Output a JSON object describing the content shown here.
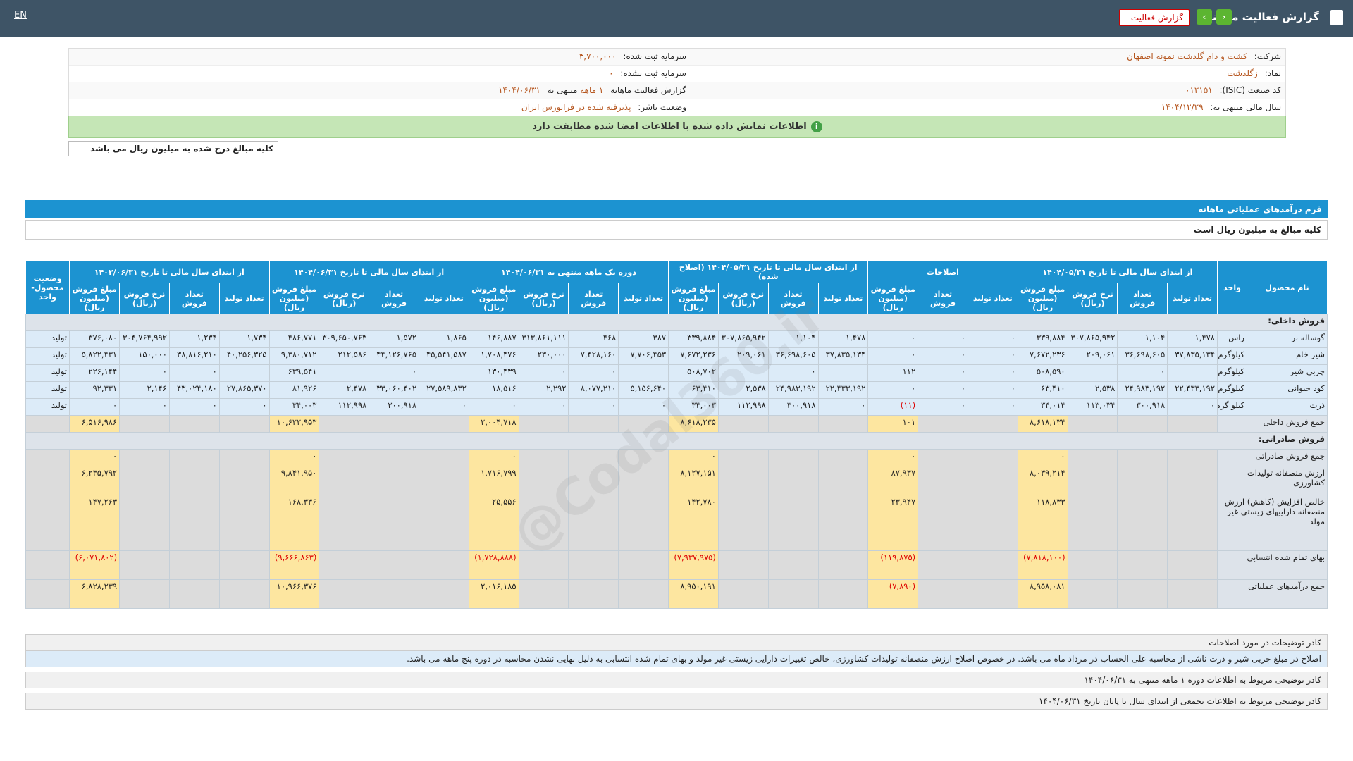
{
  "header": {
    "title": "گزارش فعالیت ماهانه",
    "report_select": "گزارش فعالیت",
    "language": "EN"
  },
  "info": {
    "rows": [
      {
        "right": {
          "label": "شرکت:",
          "value": "کشت و دام گلدشت نمونه اصفهان"
        },
        "left": {
          "label": "سرمایه ثبت شده:",
          "value": "۳,۷۰۰,۰۰۰"
        }
      },
      {
        "right": {
          "label": "نماد:",
          "value": "زگلدشت"
        },
        "left": {
          "label": "سرمایه ثبت نشده:",
          "value": "۰"
        }
      },
      {
        "right": {
          "label": "کد صنعت (ISIC):",
          "value": "۰۱۲۱۵۱"
        },
        "left": {
          "label": "گزارش فعالیت ماهانه",
          "value": "۱ ماهه",
          "suffix": "منتهی به",
          "date": "۱۴۰۴/۰۶/۳۱"
        }
      },
      {
        "right": {
          "label": "سال مالی منتهی به:",
          "value": "۱۴۰۴/۱۲/۲۹"
        },
        "left": {
          "label": "وضعیت ناشر:",
          "value": "پذیرفته شده در فرابورس ایران"
        }
      }
    ]
  },
  "notice": "اطلاعات نمایش داده شده با اطلاعات امضا شده مطابقت دارد",
  "unit_note": "کلیه مبالغ درج شده به میلیون ریال می باشد",
  "section": {
    "title": "فرم درآمدهای عملیاتی ماهانه",
    "subtitle": "کلیه مبالغ به میلیون ریال است"
  },
  "watermark": "@Codal360.ir",
  "table": {
    "head": {
      "name": "نام محصول",
      "unit": "واحد",
      "status": "وضعیت محصول-واحد",
      "groups": [
        {
          "title": "از ابتدای سال مالی تا تاریخ ۱۴۰۴/۰۵/۳۱",
          "columns": [
            "تعداد تولید",
            "تعداد فروش",
            "نرخ فروش (ریال)",
            "مبلغ فروش (میلیون ریال)"
          ]
        },
        {
          "title": "اصلاحات",
          "columns": [
            "تعداد تولید",
            "تعداد فروش",
            "مبلغ فروش (میلیون ریال)"
          ]
        },
        {
          "title": "از ابتدای سال مالی تا تاریخ ۱۴۰۴/۰۵/۳۱ (اصلاح شده)",
          "columns": [
            "تعداد تولید",
            "تعداد فروش",
            "نرخ فروش (ریال)",
            "مبلغ فروش (میلیون ریال)"
          ]
        },
        {
          "title": "دوره یک ماهه منتهی به ۱۴۰۴/۰۶/۳۱",
          "columns": [
            "تعداد تولید",
            "تعداد فروش",
            "نرخ فروش (ریال)",
            "مبلغ فروش (میلیون ریال)"
          ]
        },
        {
          "title": "از ابتدای سال مالی تا تاریخ ۱۴۰۴/۰۶/۳۱",
          "columns": [
            "تعداد تولید",
            "تعداد فروش",
            "نرخ فروش (ریال)",
            "مبلغ فروش (میلیون ریال)"
          ]
        },
        {
          "title": "از ابتدای سال مالی تا تاریخ ۱۴۰۳/۰۶/۳۱",
          "columns": [
            "تعداد تولید",
            "تعداد فروش",
            "نرخ فروش (ریال)",
            "مبلغ فروش (میلیون ریال)"
          ]
        }
      ]
    },
    "domestic_title": "فروش داخلی:",
    "products": [
      {
        "name": "گوساله نر",
        "unit": "راس",
        "status": "تولید",
        "values": [
          "۱,۴۷۸",
          "۱,۱۰۴",
          "۳۰۷,۸۶۵,۹۴۲",
          "۳۳۹,۸۸۴",
          "۰",
          "۰",
          "۰",
          "۱,۴۷۸",
          "۱,۱۰۴",
          "۳۰۷,۸۶۵,۹۴۲",
          "۳۳۹,۸۸۴",
          "۳۸۷",
          "۴۶۸",
          "۳۱۳,۸۶۱,۱۱۱",
          "۱۴۶,۸۸۷",
          "۱,۸۶۵",
          "۱,۵۷۲",
          "۳۰۹,۶۵۰,۷۶۳",
          "۴۸۶,۷۷۱",
          "۱,۷۳۴",
          "۱,۲۳۴",
          "۳۰۴,۷۶۴,۹۹۲",
          "۳۷۶,۰۸۰"
        ]
      },
      {
        "name": "شیر خام",
        "unit": "کیلوگرم",
        "status": "تولید",
        "values": [
          "۳۷,۸۳۵,۱۳۴",
          "۳۶,۶۹۸,۶۰۵",
          "۲۰۹,۰۶۱",
          "۷,۶۷۲,۲۳۶",
          "۰",
          "۰",
          "۰",
          "۳۷,۸۳۵,۱۳۴",
          "۳۶,۶۹۸,۶۰۵",
          "۲۰۹,۰۶۱",
          "۷,۶۷۲,۲۳۶",
          "۷,۷۰۶,۴۵۳",
          "۷,۴۲۸,۱۶۰",
          "۲۳۰,۰۰۰",
          "۱,۷۰۸,۴۷۶",
          "۴۵,۵۴۱,۵۸۷",
          "۴۴,۱۲۶,۷۶۵",
          "۲۱۲,۵۸۶",
          "۹,۳۸۰,۷۱۲",
          "۴۰,۲۵۶,۳۲۵",
          "۳۸,۸۱۶,۲۱۰",
          "۱۵۰,۰۰۰",
          "۵,۸۲۲,۴۳۱"
        ]
      },
      {
        "name": "چربی شیر",
        "unit": "کیلوگرم",
        "status": "تولید",
        "values": [
          null,
          "۰",
          null,
          "۵۰۸,۵۹۰",
          "۰",
          "۰",
          "۱۱۲",
          null,
          "۰",
          null,
          "۵۰۸,۷۰۲",
          null,
          "۰",
          "۰",
          "۱۳۰,۴۳۹",
          null,
          "۰",
          null,
          "۶۳۹,۵۴۱",
          null,
          "۰",
          "۰",
          "۲۲۶,۱۴۴"
        ]
      },
      {
        "name": "کود حیوانی",
        "unit": "کیلوگرم",
        "status": "تولید",
        "values": [
          "۲۲,۴۳۳,۱۹۲",
          "۲۴,۹۸۳,۱۹۲",
          "۲,۵۳۸",
          "۶۳,۴۱۰",
          "۰",
          "۰",
          "۰",
          "۲۲,۴۳۳,۱۹۲",
          "۲۴,۹۸۳,۱۹۲",
          "۲,۵۳۸",
          "۶۳,۴۱۰",
          "۵,۱۵۶,۶۴۰",
          "۸,۰۷۷,۲۱۰",
          "۲,۲۹۲",
          "۱۸,۵۱۶",
          "۲۷,۵۸۹,۸۳۲",
          "۳۳,۰۶۰,۴۰۲",
          "۲,۴۷۸",
          "۸۱,۹۲۶",
          "۲۷,۸۶۵,۳۷۰",
          "۴۳,۰۲۴,۱۸۰",
          "۲,۱۴۶",
          "۹۲,۳۳۱"
        ]
      },
      {
        "name": "ذرت",
        "unit": "کیلو گرم",
        "status": "تولید",
        "values": [
          "۰",
          "۳۰۰,۹۱۸",
          "۱۱۳,۰۳۴",
          "۳۴,۰۱۴",
          "۰",
          "۰",
          "(۱۱)",
          "۰",
          "۳۰۰,۹۱۸",
          "۱۱۲,۹۹۸",
          "۳۴,۰۰۳",
          "۰",
          "۰",
          "۰",
          "۰",
          "۰",
          "۳۰۰,۹۱۸",
          "۱۱۲,۹۹۸",
          "۳۴,۰۰۳",
          "۰",
          "۰",
          "۰",
          "۰"
        ]
      }
    ],
    "domestic_total": {
      "label": "جمع فروش داخلی",
      "values": [
        "۸,۶۱۸,۱۳۴",
        "۱۰۱",
        "۸,۶۱۸,۲۳۵",
        "۲,۰۰۴,۷۱۸",
        "۱۰,۶۲۲,۹۵۳",
        "۶,۵۱۶,۹۸۶"
      ]
    },
    "export_title": "فروش صادراتی:",
    "summary": [
      {
        "label": "جمع فروش صادراتی",
        "values": [
          "۰",
          "۰",
          "۰",
          "۰",
          "۰",
          "۰"
        ]
      },
      {
        "label": "ارزش منصفانه تولیدات کشاورزی",
        "values": [
          "۸,۰۳۹,۲۱۴",
          "۸۷,۹۳۷",
          "۸,۱۲۷,۱۵۱",
          "۱,۷۱۶,۷۹۹",
          "۹,۸۴۱,۹۵۰",
          "۶,۲۳۵,۷۹۲"
        ]
      },
      {
        "label": "خالص افزایش (کاهش) ارزش منصفانه داراییهای زیستی غیر مولد",
        "values": [
          "۱۱۸,۸۳۳",
          "۲۳,۹۴۷",
          "۱۴۲,۷۸۰",
          "۲۵,۵۵۶",
          "۱۶۸,۳۳۶",
          "۱۴۷,۲۶۳"
        ]
      },
      {
        "label": "بهای تمام شده انتسابی",
        "values": [
          "(۷,۸۱۸,۱۰۰)",
          "(۱۱۹,۸۷۵)",
          "(۷,۹۳۷,۹۷۵)",
          "(۱,۷۲۸,۸۸۸)",
          "(۹,۶۶۶,۸۶۳)",
          "(۶,۰۷۱,۸۰۲)"
        ]
      },
      {
        "label": "جمع درآمدهای عملیاتی",
        "values": [
          "۸,۹۵۸,۰۸۱",
          "(۷,۸۹۰)",
          "۸,۹۵۰,۱۹۱",
          "۲,۰۱۶,۱۸۵",
          "۱۰,۹۶۶,۳۷۶",
          "۶,۸۲۸,۲۳۹"
        ]
      }
    ]
  },
  "notes": [
    {
      "title": "کادر توضیحات در مورد اصلاحات",
      "text": "اصلاح در مبلغ چربی شیر و ذرت ناشی از محاسبه علی الحساب در مرداد ماه می باشد. در خصوص اصلاح ارزش منصفانه تولیدات کشاورزی، خالص تغییرات دارایی زیستی غیر مولد و بهای تمام شده انتسابی به دلیل نهایی نشدن محاسبه در دوره پنج ماهه می باشد."
    },
    {
      "title": "کادر توضیحی مربوط به اطلاعات دوره ۱ ماهه منتهی به ۱۴۰۴/۰۶/۳۱"
    },
    {
      "title": "کادر توضیحی مربوط به اطلاعات تجمعی از ابتدای سال تا پایان تاریخ ۱۴۰۴/۰۶/۳۱"
    }
  ]
}
